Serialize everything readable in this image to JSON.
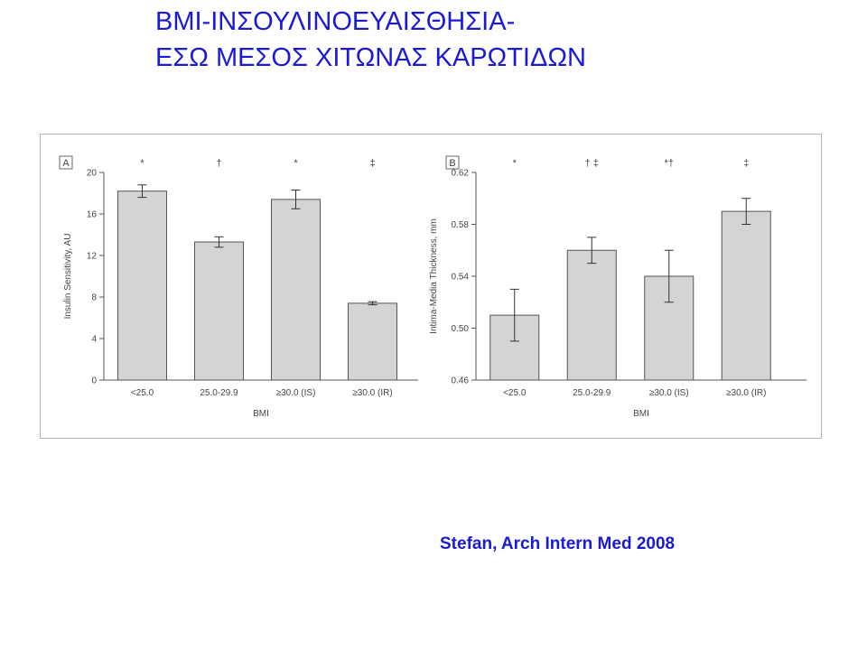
{
  "slide": {
    "title_line1": "BMI-ΙΝΣΟΥΛΙΝΟΕΥΑΙΣΘΗΣΙΑ-",
    "title_line2": "ΕΣΩ ΜΕΣΟΣ ΧΙΤΩΝΑΣ ΚΑΡΩΤΙΔΩΝ",
    "citation": "Stefan, Arch Intern Med 2008",
    "title_color": "#1a1ad6"
  },
  "chart_data": [
    {
      "type": "bar",
      "panel": "A",
      "categories": [
        "<25.0",
        "25.0-29.9",
        "≥30.0 (IS)",
        "≥30.0 (IR)"
      ],
      "values": [
        18.2,
        13.3,
        17.4,
        7.4
      ],
      "errors": [
        0.6,
        0.5,
        0.9,
        0.15
      ],
      "markers": [
        "*",
        "†",
        "*",
        "‡"
      ],
      "xlabel": "BMI",
      "ylabel": "Insulin Sensitivity, AU",
      "ylim": [
        0,
        20
      ],
      "yticks": [
        "0",
        "4",
        "8",
        "12",
        "16",
        "20"
      ],
      "ytick_values": [
        0,
        4,
        8,
        12,
        16,
        20
      ],
      "bar_color": "#d4d4d4"
    },
    {
      "type": "bar",
      "panel": "B",
      "categories": [
        "<25.0",
        "25.0-29.9",
        "≥30.0 (IS)",
        "≥30.0 (IR)"
      ],
      "values": [
        0.51,
        0.56,
        0.54,
        0.59
      ],
      "errors": [
        0.02,
        0.01,
        0.02,
        0.01
      ],
      "markers": [
        "*",
        "† ‡",
        "*†",
        "‡"
      ],
      "xlabel": "BMI",
      "ylabel": "Intima-Media Thickness, mm",
      "ylim": [
        0.46,
        0.62
      ],
      "yticks": [
        "0.46",
        "0.50",
        "0.54",
        "0.58",
        "0.62"
      ],
      "ytick_values": [
        0.46,
        0.5,
        0.54,
        0.58,
        0.62
      ],
      "bar_color": "#d4d4d4"
    }
  ]
}
